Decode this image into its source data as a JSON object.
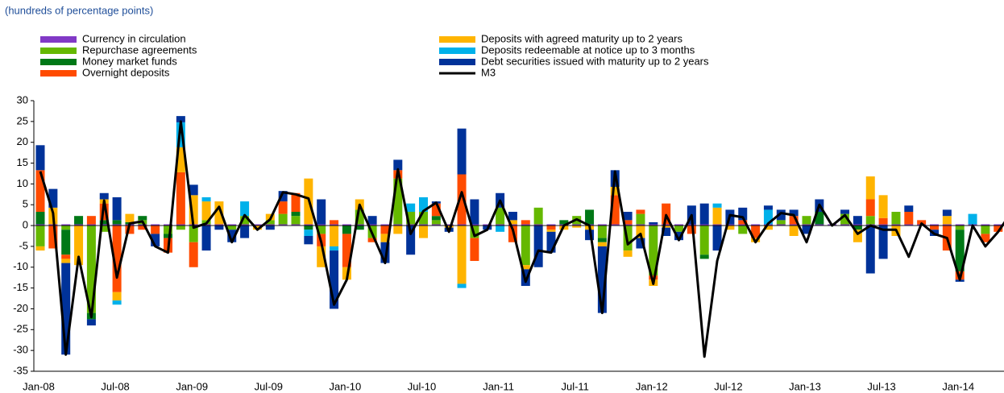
{
  "chart_data": {
    "type": "bar",
    "stacked": true,
    "subtitle": "(hundreds of percentage points)",
    "categories": [
      "Jan-08",
      null,
      null,
      null,
      null,
      null,
      "Jul-08",
      null,
      null,
      null,
      null,
      null,
      "Jan-09",
      null,
      null,
      null,
      null,
      null,
      "Jul-09",
      null,
      null,
      null,
      null,
      null,
      "Jan-10",
      null,
      null,
      null,
      null,
      null,
      "Jul-10",
      null,
      null,
      null,
      null,
      null,
      "Jan-11",
      null,
      null,
      null,
      null,
      null,
      "Jul-11",
      null,
      null,
      null,
      null,
      null,
      "Jan-12",
      null,
      null,
      null,
      null,
      null,
      "Jul-12",
      null,
      null,
      null,
      null,
      null,
      "Jan-13",
      null,
      null,
      null,
      null,
      null,
      "Jul-13",
      null,
      null,
      null,
      null,
      null,
      "Jan-14",
      null,
      null,
      null,
      null
    ],
    "ylim": [
      -35,
      30
    ],
    "yticks": [
      30,
      25,
      20,
      15,
      10,
      5,
      0,
      -5,
      -10,
      -15,
      -20,
      -25,
      -30,
      -35
    ],
    "grid": false,
    "series": [
      {
        "name": "Currency in circulation",
        "color": "#8139c6",
        "type": "bar",
        "values": [
          0.3,
          0.3,
          0.3,
          0.3,
          0.3,
          0.3,
          0.3,
          0.3,
          0.3,
          0.3,
          0.3,
          0.3,
          0.3,
          0.3,
          0.3,
          0.3,
          0.3,
          0.3,
          0.3,
          0.3,
          0.3,
          0.3,
          0.3,
          0.3,
          0.3,
          0.3,
          0.3,
          0.3,
          0.3,
          0.3,
          0.3,
          0.3,
          0.3,
          0.3,
          0.3,
          0.3,
          0.3,
          0.3,
          0.3,
          0.3,
          0.3,
          0.3,
          0.3,
          0.3,
          0.3,
          0.3,
          0.3,
          0.3,
          0.3,
          0.3,
          0.3,
          0.3,
          0.3,
          0.3,
          0.3,
          0.3,
          0.3,
          0.3,
          0.3,
          0.3,
          0.3,
          0.3,
          0.3,
          0.3,
          0.3,
          0.3,
          0.3,
          0.3,
          0.3,
          0.3,
          0.3,
          0.3,
          0.3,
          0.3,
          0.3,
          0.3,
          0.3
        ]
      },
      {
        "name": "Repurchase agreements",
        "color": "#65b800",
        "type": "bar",
        "values": [
          -5,
          0,
          -1,
          0,
          -21,
          -1.5,
          0,
          0,
          1,
          0,
          -2,
          -1,
          -4,
          1,
          0,
          -1,
          2,
          0,
          1,
          2.5,
          2,
          0,
          -2,
          0,
          0,
          3.5,
          -3,
          0,
          11,
          3,
          3,
          1,
          0,
          0,
          -3,
          0,
          4,
          0,
          -9.5,
          4,
          0,
          0,
          2,
          0,
          -3,
          0,
          -6,
          2.5,
          -12,
          0,
          -1.5,
          0,
          -7,
          0,
          0,
          -2,
          0,
          0,
          1,
          0,
          2,
          0,
          0,
          2.5,
          0,
          2,
          0,
          3,
          0,
          0,
          0,
          0,
          -1,
          0,
          -2,
          0,
          0.5
        ]
      },
      {
        "name": "Money market funds",
        "color": "#007816",
        "type": "bar",
        "values": [
          3,
          0,
          -6,
          2,
          -1.5,
          1,
          1,
          0.5,
          1,
          0,
          -1,
          0,
          0,
          0,
          0,
          0,
          0,
          0,
          0,
          0,
          1,
          -1,
          0,
          0,
          -2,
          -1,
          0,
          0,
          0,
          0,
          0,
          1,
          0,
          0,
          0,
          0,
          0,
          0,
          0,
          0,
          0,
          1,
          0,
          3.5,
          -1,
          0,
          0,
          0,
          0,
          0,
          0,
          0,
          -1,
          0,
          0,
          0,
          0,
          0,
          0,
          0,
          0,
          3,
          0,
          0,
          -1,
          0,
          0,
          0,
          0,
          0,
          0,
          0,
          -10,
          0,
          0,
          0,
          0
        ]
      },
      {
        "name": "Overnight deposits",
        "color": "#ff4b00",
        "type": "bar",
        "values": [
          10,
          -5.5,
          -1,
          0,
          2,
          4,
          -16,
          -2,
          -1,
          -2,
          -3.5,
          12.5,
          -6,
          0,
          0,
          0,
          0,
          0,
          0,
          3,
          4.5,
          0,
          -3,
          1,
          -8,
          0,
          -1,
          -2,
          2,
          0,
          0,
          3,
          0,
          12,
          -5.5,
          0,
          0,
          -4,
          1,
          0,
          -1,
          0,
          0,
          0,
          0,
          7,
          1,
          1,
          -1,
          5,
          0,
          -2,
          0,
          0,
          0,
          1,
          -3,
          0,
          0,
          2,
          0,
          0,
          0,
          0,
          0,
          4,
          1.5,
          0,
          3,
          1,
          -1,
          -6,
          -2,
          0,
          -2,
          -1.5,
          2
        ]
      },
      {
        "name": "Deposits with agreed maturity up to 2 years",
        "color": "#ffb400",
        "type": "bar",
        "values": [
          -1,
          4,
          -1,
          -9.5,
          0,
          1,
          -2,
          2,
          0,
          0,
          0,
          6,
          7,
          4.5,
          5.5,
          0,
          0,
          -1,
          1.5,
          0,
          0,
          11,
          -5,
          -5,
          -3,
          2.5,
          0,
          -2,
          -2,
          0,
          -3,
          0,
          -0.5,
          -14,
          0,
          0,
          0,
          1,
          -1,
          0,
          -0.5,
          -1,
          -0.5,
          -1,
          -1,
          2,
          -1.5,
          -3,
          -1.5,
          -0.5,
          0,
          0,
          0,
          4,
          -1,
          0,
          -1,
          -1,
          0,
          -2.5,
          0,
          0,
          0,
          0,
          -3,
          5.5,
          5.5,
          -2.5,
          0,
          0,
          0,
          2,
          0,
          0,
          0,
          0,
          0.5
        ]
      },
      {
        "name": "Deposits redeemable at notice up to 3 months",
        "color": "#00b1ea",
        "type": "bar",
        "values": [
          0,
          0,
          0,
          0,
          0,
          0,
          -1,
          0,
          0,
          0,
          0,
          6,
          0,
          1,
          0,
          0,
          3.5,
          0,
          0,
          0,
          0,
          -1.5,
          0,
          -1,
          0,
          0,
          0,
          0,
          0,
          2,
          3.5,
          0,
          0,
          -1,
          0,
          0,
          -1.5,
          0,
          0,
          0,
          0,
          0,
          0,
          0,
          0,
          0,
          0,
          0,
          0,
          0,
          0,
          0,
          0,
          1,
          0,
          0,
          0,
          3.5,
          0,
          0,
          0,
          0,
          0,
          0,
          0,
          0,
          0,
          0,
          0,
          0,
          0,
          0,
          0,
          2.5,
          0,
          0,
          0
        ]
      },
      {
        "name": "Debt securities issued with maturity up to 2 years",
        "color": "#003299",
        "type": "bar",
        "values": [
          6,
          4.5,
          -22,
          0,
          -1.5,
          1.5,
          5.5,
          0,
          0,
          -3,
          0,
          1.5,
          2.5,
          -6,
          -1,
          -3,
          -3,
          0,
          -1,
          2.5,
          0,
          -2,
          6,
          -14,
          0,
          0,
          2,
          -5,
          2.5,
          -7,
          0,
          0.5,
          -1,
          11,
          6,
          -1,
          3.5,
          2,
          -4,
          -10,
          -5,
          0,
          0,
          -2.5,
          -16,
          4,
          2,
          -2.5,
          0.5,
          -2,
          -2,
          4.5,
          5,
          -6,
          3.5,
          3,
          0,
          1,
          2.5,
          1.5,
          -2,
          3,
          0,
          1,
          2,
          -11.5,
          -8,
          0,
          1.5,
          0,
          -1.5,
          1.5,
          -0.5,
          0,
          0,
          0,
          0
        ]
      },
      {
        "name": "M3",
        "color": "#000000",
        "type": "line",
        "values": [
          13,
          3,
          -31,
          -7.5,
          -22,
          6,
          -12.5,
          0.5,
          1,
          -5,
          -6.5,
          25,
          -0.5,
          0.5,
          4.5,
          -4,
          2.5,
          -1,
          1.5,
          8,
          7.5,
          6.5,
          -4,
          -19,
          -13,
          5,
          -2,
          -9,
          13.5,
          -2,
          3.5,
          5.5,
          -1.5,
          8,
          -2.5,
          -1,
          6,
          -1,
          -13.5,
          -6,
          -6.5,
          0,
          1.5,
          0,
          -21,
          13,
          -4.5,
          -2,
          -14,
          2.5,
          -3.5,
          2.5,
          -31.5,
          -8.5,
          2.5,
          2,
          -4,
          0.5,
          3,
          2.5,
          -4,
          5,
          0,
          2.5,
          -2,
          0,
          -1,
          -1,
          -7.5,
          0.5,
          -2,
          -3,
          -13,
          0,
          -5,
          -1.5,
          3
        ]
      }
    ]
  }
}
